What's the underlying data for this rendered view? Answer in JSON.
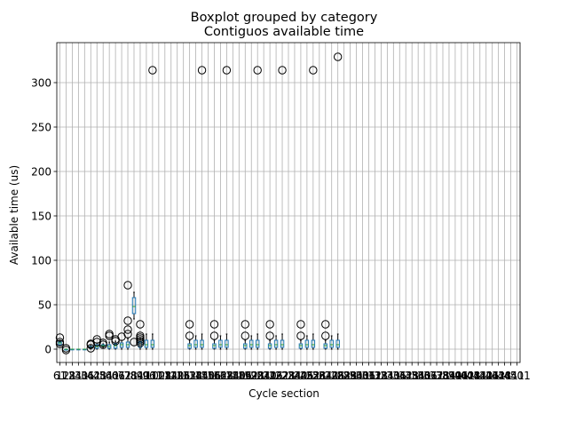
{
  "chart_data": {
    "type": "boxplot",
    "suptitle": "Boxplot grouped by category",
    "title": "Contiguos available time",
    "xlabel": "Cycle section",
    "ylabel": "Available time (us)",
    "ylim": [
      -15,
      345
    ],
    "yticks": [
      0,
      50,
      100,
      150,
      200,
      250,
      300
    ],
    "grid": true,
    "colors": {
      "box": "#1f77b4",
      "median": "#2ca02c",
      "whisker": "#000000",
      "flier": "#000000",
      "grid": "#b0b0b0"
    },
    "categories": [
      "61",
      "121",
      "181",
      "241",
      "301",
      "361",
      "421",
      "481",
      "541",
      "601",
      "661",
      "721",
      "781",
      "841",
      "901",
      "961",
      "1021",
      "1081",
      "1141",
      "1201",
      "1261",
      "1321",
      "1381",
      "1441",
      "1501",
      "1561",
      "1621",
      "1681",
      "1741",
      "1801",
      "1861",
      "1921",
      "1981",
      "2041",
      "2101",
      "2161",
      "2221",
      "2281",
      "2341",
      "2401",
      "2461",
      "2521",
      "2581",
      "2641",
      "2701",
      "2761",
      "2821",
      "2881",
      "2941",
      "3001",
      "3061",
      "3121",
      "3181",
      "3241",
      "3301",
      "3361",
      "3421",
      "3481",
      "3541",
      "3601",
      "3661",
      "3721",
      "3781",
      "3841",
      "3901",
      "3961",
      "4021",
      "4081",
      "4141",
      "4201",
      "4261",
      "4321",
      "4381",
      "4441",
      "4501"
    ],
    "boxes": [
      {
        "q1": 5,
        "med": 7,
        "q3": 8,
        "wlo": 4,
        "whi": 9,
        "fliers": [
          13,
          8,
          6
        ]
      },
      {
        "q1": -1,
        "med": 0,
        "q3": 0,
        "wlo": -1,
        "whi": 0,
        "fliers": [
          1,
          -1
        ]
      },
      {
        "q1": 0,
        "med": 0,
        "q3": 0,
        "wlo": 0,
        "whi": 0,
        "fliers": []
      },
      {
        "q1": 0,
        "med": 0,
        "q3": 0,
        "wlo": 0,
        "whi": 0,
        "fliers": []
      },
      {
        "q1": 0,
        "med": 0,
        "q3": 0,
        "wlo": 0,
        "whi": 0,
        "fliers": []
      },
      {
        "q1": 1,
        "med": 2,
        "q3": 3,
        "wlo": 0,
        "whi": 4,
        "fliers": [
          6,
          5,
          1
        ]
      },
      {
        "q1": 1,
        "med": 3,
        "q3": 5,
        "wlo": 0,
        "whi": 7,
        "fliers": [
          11,
          8
        ]
      },
      {
        "q1": 3,
        "med": 4,
        "q3": 5,
        "wlo": 2,
        "whi": 6,
        "fliers": [
          7,
          5
        ]
      },
      {
        "q1": 1,
        "med": 3,
        "q3": 5,
        "wlo": 0,
        "whi": 8,
        "fliers": [
          17,
          15
        ]
      },
      {
        "q1": 1,
        "med": 4,
        "q3": 6,
        "wlo": 0,
        "whi": 9,
        "fliers": [
          11,
          9
        ]
      },
      {
        "q1": 2,
        "med": 5,
        "q3": 7,
        "wlo": 0,
        "whi": 10,
        "fliers": [
          14
        ]
      },
      {
        "q1": 2,
        "med": 5,
        "q3": 8,
        "wlo": 0,
        "whi": 12,
        "fliers": [
          72,
          32,
          22,
          17
        ]
      },
      {
        "q1": 40,
        "med": 48,
        "q3": 58,
        "wlo": 34,
        "whi": 64,
        "fliers": [
          8
        ]
      },
      {
        "q1": 2,
        "med": 5,
        "q3": 8,
        "wlo": 0,
        "whi": 12,
        "fliers": [
          28,
          15,
          13,
          11,
          9,
          7
        ]
      },
      {
        "q1": 2,
        "med": 5,
        "q3": 10,
        "wlo": 0,
        "whi": 17,
        "fliers": []
      },
      {
        "q1": 2,
        "med": 5,
        "q3": 10,
        "wlo": 0,
        "whi": 17,
        "fliers": [
          314
        ]
      },
      {
        "q1": 1,
        "med": 4,
        "q3": 6,
        "wlo": 0,
        "whi": 10,
        "fliers": [
          28,
          15
        ]
      },
      {
        "q1": 2,
        "med": 5,
        "q3": 10,
        "wlo": 0,
        "whi": 15,
        "fliers": []
      },
      {
        "q1": 2,
        "med": 5,
        "q3": 10,
        "wlo": 0,
        "whi": 17,
        "fliers": [
          314
        ]
      },
      {
        "q1": 1,
        "med": 4,
        "q3": 6,
        "wlo": 0,
        "whi": 10,
        "fliers": [
          28,
          15
        ]
      },
      {
        "q1": 2,
        "med": 5,
        "q3": 10,
        "wlo": 0,
        "whi": 15,
        "fliers": []
      },
      {
        "q1": 2,
        "med": 5,
        "q3": 10,
        "wlo": 0,
        "whi": 17,
        "fliers": [
          314
        ]
      },
      {
        "q1": 1,
        "med": 4,
        "q3": 6,
        "wlo": 0,
        "whi": 10,
        "fliers": [
          28,
          15
        ]
      },
      {
        "q1": 2,
        "med": 5,
        "q3": 10,
        "wlo": 0,
        "whi": 15,
        "fliers": []
      },
      {
        "q1": 2,
        "med": 5,
        "q3": 10,
        "wlo": 0,
        "whi": 17,
        "fliers": [
          314
        ]
      },
      {
        "q1": 1,
        "med": 4,
        "q3": 6,
        "wlo": 0,
        "whi": 10,
        "fliers": [
          28,
          15
        ]
      },
      {
        "q1": 2,
        "med": 5,
        "q3": 10,
        "wlo": 0,
        "whi": 15,
        "fliers": []
      },
      {
        "q1": 2,
        "med": 5,
        "q3": 10,
        "wlo": 0,
        "whi": 17,
        "fliers": [
          314
        ]
      },
      {
        "q1": 1,
        "med": 4,
        "q3": 6,
        "wlo": 0,
        "whi": 10,
        "fliers": [
          28,
          15
        ]
      },
      {
        "q1": 2,
        "med": 5,
        "q3": 10,
        "wlo": 0,
        "whi": 15,
        "fliers": []
      },
      {
        "q1": 2,
        "med": 5,
        "q3": 10,
        "wlo": 0,
        "whi": 17,
        "fliers": [
          314
        ]
      },
      {
        "q1": 1,
        "med": 4,
        "q3": 6,
        "wlo": 0,
        "whi": 10,
        "fliers": [
          28,
          15
        ]
      },
      {
        "q1": 2,
        "med": 5,
        "q3": 10,
        "wlo": 0,
        "whi": 15,
        "fliers": []
      },
      {
        "q1": 2,
        "med": 5,
        "q3": 10,
        "wlo": 0,
        "whi": 17,
        "fliers": [
          329
        ]
      }
    ],
    "box_positions": [
      1,
      2,
      3,
      4,
      5,
      6,
      7,
      8,
      9,
      10,
      11,
      12,
      13,
      14,
      15,
      16,
      22,
      23,
      24,
      26,
      27,
      28,
      31,
      32,
      33,
      35,
      36,
      37,
      40,
      41,
      42,
      44,
      45,
      46
    ],
    "box_positions_hint": "category index (1-based) each box belongs to"
  }
}
